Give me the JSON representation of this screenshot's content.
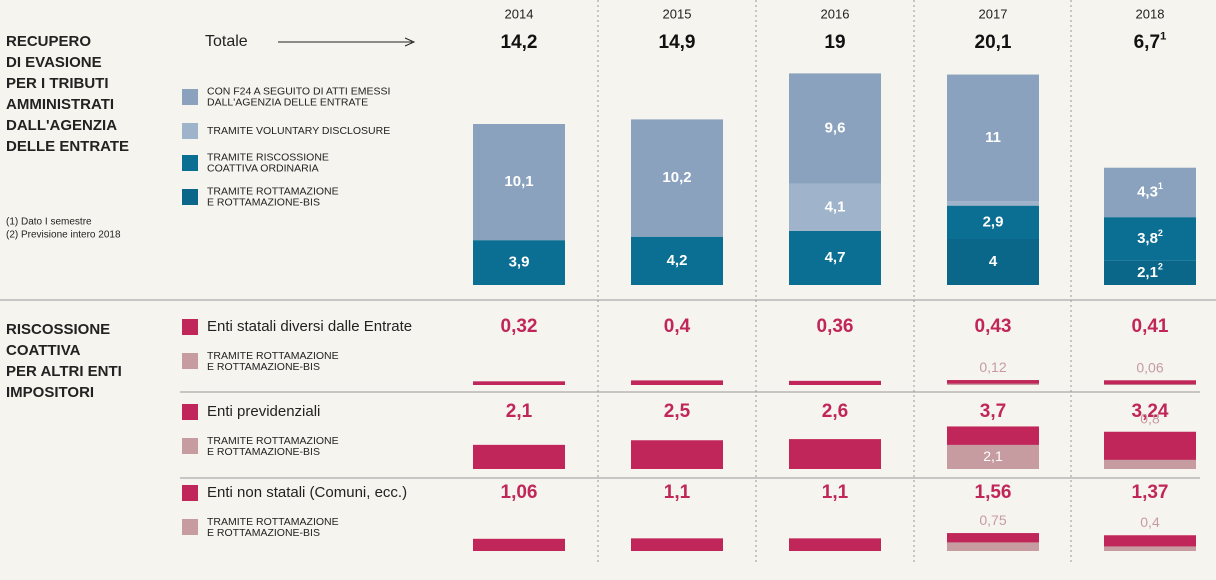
{
  "left_title": [
    "RECUPERO",
    "DI EVASIONE",
    "PER I TRIBUTI",
    "AMMINISTRATI",
    "DALL'AGENZIA",
    "DELLE ENTRATE"
  ],
  "notes": [
    "(1) Dato I semestre",
    "(2) Previsione intero 2018"
  ],
  "total_label": "Totale",
  "years": [
    "2014",
    "2015",
    "2016",
    "2017",
    "2018"
  ],
  "totals": {
    "values": [
      14.2,
      14.9,
      19,
      20.1,
      6.7
    ],
    "value_labels": [
      "14,2",
      "14,9",
      "19",
      "20,1",
      "6,7"
    ],
    "value_notes": [
      null,
      null,
      null,
      null,
      "1"
    ]
  },
  "recupero": {
    "series": [
      {
        "name": [
          "CON F24 A SEGUITO DI ATTI EMESSI",
          "DALL'AGENZIA DELLE ENTRATE"
        ],
        "color": "#8aa2bd",
        "values": [
          10.1,
          10.2,
          9.6,
          11,
          4.3
        ],
        "value_labels": [
          "10,1",
          "10,2",
          "9,6",
          "11",
          "4,3"
        ],
        "value_notes": [
          null,
          null,
          null,
          null,
          "1"
        ]
      },
      {
        "name": [
          "TRAMITE VOLUNTARY DISCLOSURE"
        ],
        "color": "#9fb3ca",
        "values": [
          null,
          null,
          4.1,
          0.4,
          null
        ],
        "value_labels": [
          null,
          null,
          "4,1",
          "0,4",
          null
        ],
        "value_notes": [
          null,
          null,
          null,
          null,
          null
        ]
      },
      {
        "name": [
          "TRAMITE RISCOSSIONE",
          "COATTIVA ORDINARIA"
        ],
        "color": "#0b6e93",
        "values": [
          3.9,
          4.2,
          4.7,
          2.9,
          3.8
        ],
        "value_labels": [
          "3,9",
          "4,2",
          "4,7",
          "2,9",
          "3,8"
        ],
        "value_notes": [
          null,
          null,
          null,
          null,
          "2"
        ]
      },
      {
        "name": [
          "TRAMITE ROTTAMAZIONE",
          "E ROTTAMAZIONE-BIS"
        ],
        "color": "#0a678a",
        "values": [
          null,
          null,
          null,
          4,
          2.1
        ],
        "value_labels": [
          null,
          null,
          null,
          "4",
          "2,1"
        ],
        "value_notes": [
          null,
          null,
          null,
          null,
          "2"
        ]
      }
    ]
  },
  "altri": {
    "title": [
      "RISCOSSIONE",
      "COATTIVA",
      "PER ALTRI ENTI",
      "IMPOSITORI"
    ],
    "groups": [
      {
        "name": "Enti statali diversi dalle Entrate",
        "color": "#c0265a",
        "values": [
          0.32,
          0.4,
          0.36,
          0.43,
          0.41
        ],
        "value_labels": [
          "0,32",
          "0,4",
          "0,36",
          "0,43",
          "0,41"
        ],
        "sub_name": [
          "TRAMITE ROTTAMAZIONE",
          "E ROTTAMAZIONE-BIS"
        ],
        "sub_color": "#c69ca1",
        "sub_values": [
          null,
          null,
          null,
          0.12,
          0.06
        ],
        "sub_value_labels": [
          null,
          null,
          null,
          "0,12",
          "0,06"
        ]
      },
      {
        "name": "Enti previdenziali",
        "color": "#c0265a",
        "values": [
          2.1,
          2.5,
          2.6,
          3.7,
          3.24
        ],
        "value_labels": [
          "2,1",
          "2,5",
          "2,6",
          "3,7",
          "3,24"
        ],
        "sub_name": [
          "TRAMITE ROTTAMAZIONE",
          "E ROTTAMAZIONE-BIS"
        ],
        "sub_color": "#c69ca1",
        "sub_values": [
          null,
          null,
          null,
          2.1,
          0.8
        ],
        "sub_value_labels": [
          null,
          null,
          null,
          "2,1",
          "0,8"
        ]
      },
      {
        "name": "Enti non statali (Comuni, ecc.)",
        "color": "#c0265a",
        "values": [
          1.06,
          1.1,
          1.1,
          1.56,
          1.37
        ],
        "value_labels": [
          "1,06",
          "1,1",
          "1,1",
          "1,56",
          "1,37"
        ],
        "sub_name": [
          "TRAMITE ROTTAMAZIONE",
          "E ROTTAMAZIONE-BIS"
        ],
        "sub_color": "#c69ca1",
        "sub_values": [
          null,
          null,
          null,
          0.75,
          0.4
        ],
        "sub_value_labels": [
          null,
          null,
          null,
          "0,75",
          "0,4"
        ]
      }
    ]
  }
}
